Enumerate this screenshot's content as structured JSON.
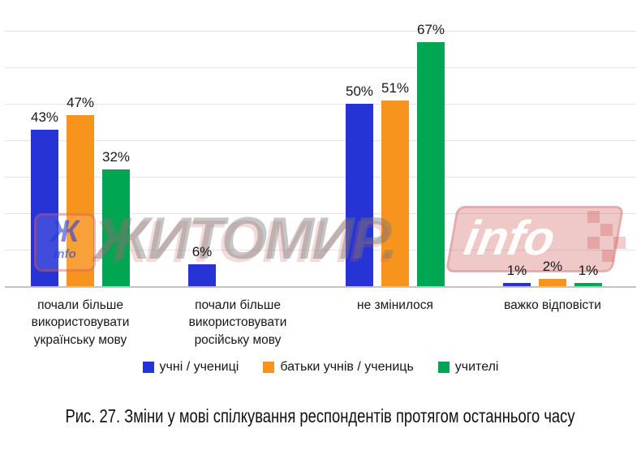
{
  "caption": "Рис. 27. Зміни у мові спілкування респондентів протягом останнього часу",
  "watermark": {
    "logo_letter": "Ж",
    "logo_sub": "info",
    "main_text": "ЖИТОМИР.",
    "suffix_text": "info",
    "accent_red": "#cc5555",
    "gray": "#787878"
  },
  "chart_data": {
    "type": "bar",
    "title": "",
    "xlabel": "",
    "ylabel": "",
    "value_suffix": "%",
    "ylim": [
      0,
      70
    ],
    "grid_step": 10,
    "grid": true,
    "y_axis_labels_visible": false,
    "legend_position": "bottom",
    "categories": [
      [
        "почали більше",
        "використовувати",
        "українську мову"
      ],
      [
        "почали більше",
        "використовувати",
        "російську мову"
      ],
      [
        "не змінилося"
      ],
      [
        "важко відповісти"
      ]
    ],
    "series": [
      {
        "name": "учні / учениці",
        "color": "#2634d6",
        "values": [
          43,
          6,
          50,
          1
        ]
      },
      {
        "name": "батьки учнів / учениць",
        "color": "#f7941d",
        "values": [
          47,
          0,
          51,
          2
        ]
      },
      {
        "name": "учителі",
        "color": "#00a651",
        "values": [
          32,
          0,
          67,
          1
        ]
      }
    ]
  }
}
